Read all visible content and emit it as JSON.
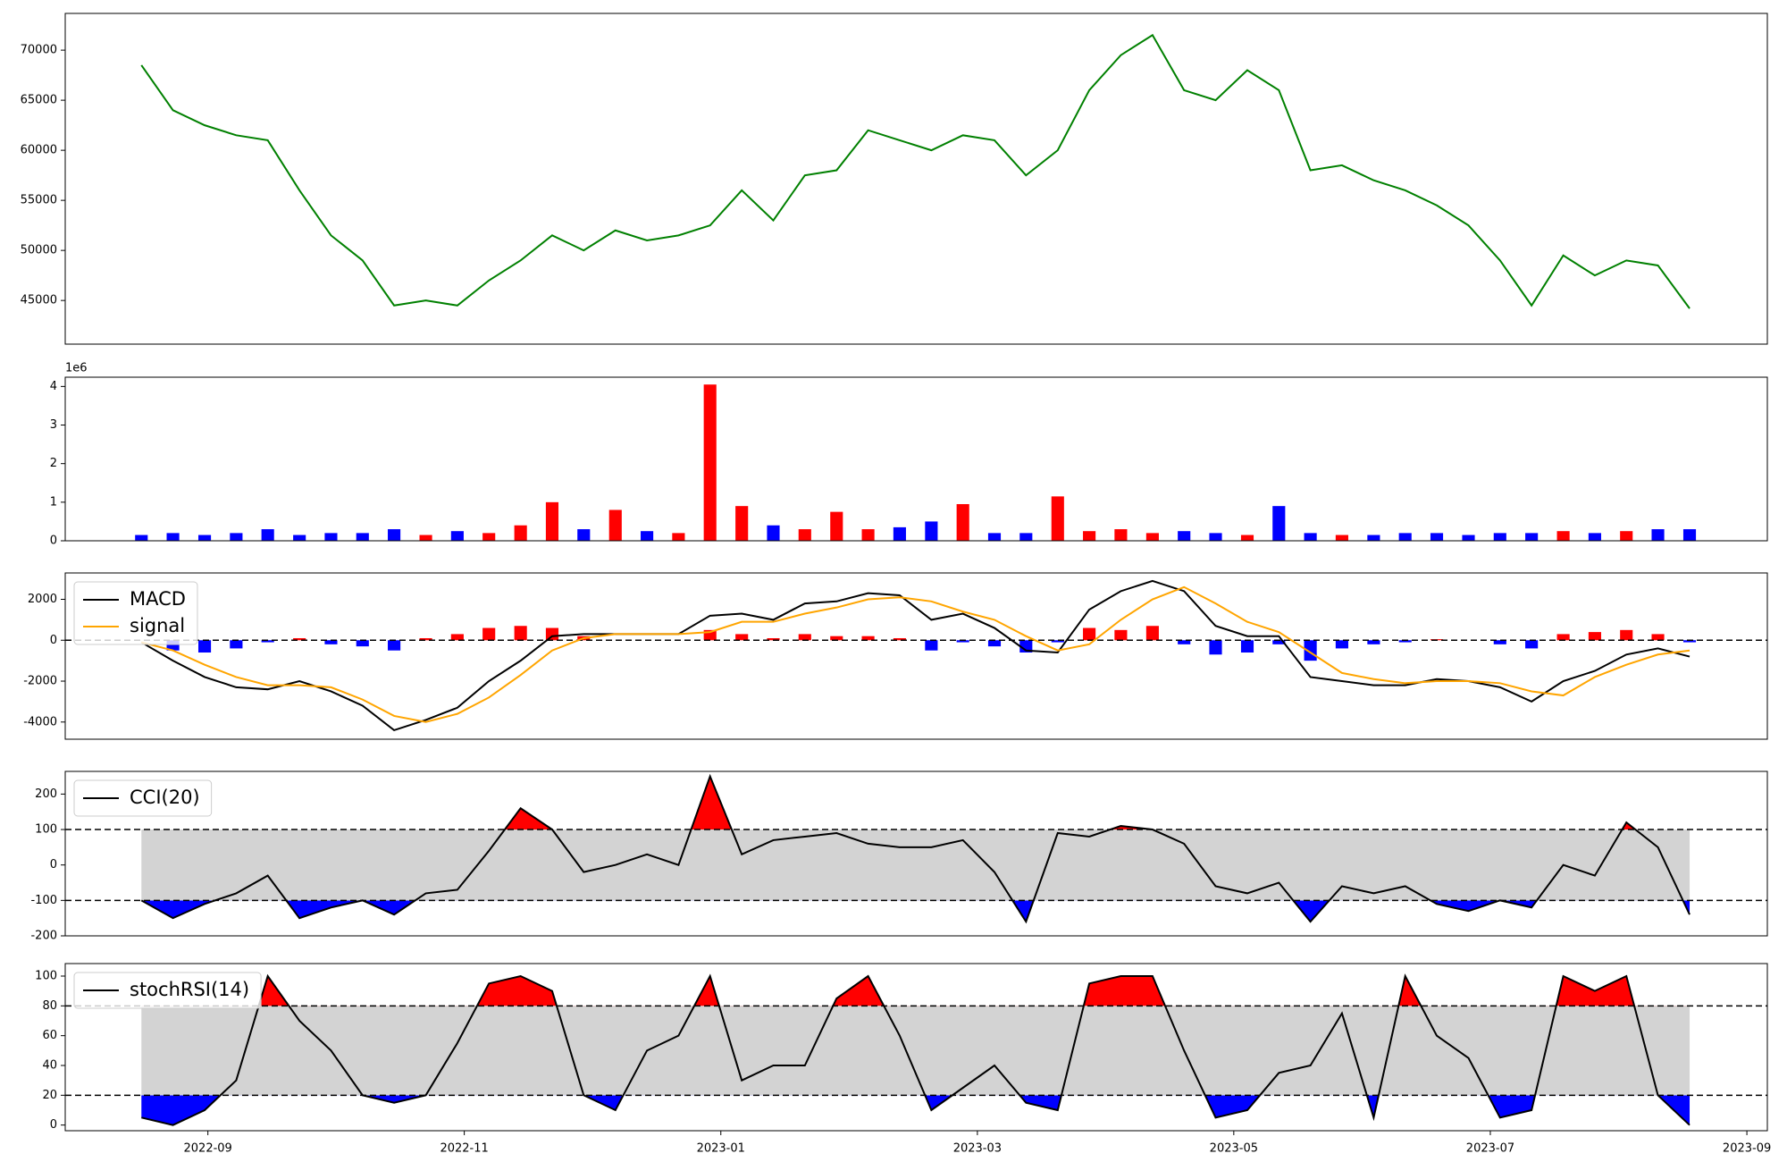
{
  "chart_data": [
    {
      "type": "line",
      "ylim": [
        40640,
        73670
      ],
      "yticks": [
        45000,
        50000,
        55000,
        60000,
        65000,
        70000
      ],
      "series": [
        {
          "color": "green",
          "values": [
            68500,
            64000,
            62500,
            61500,
            61000,
            56000,
            51500,
            49000,
            44500,
            45000,
            44500,
            47000,
            49000,
            51500,
            50000,
            52000,
            51000,
            51500,
            52500,
            56000,
            53000,
            57500,
            58000,
            62000,
            61000,
            60000,
            61500,
            61000,
            57500,
            60000,
            66000,
            69500,
            71500,
            66000,
            65000,
            68000,
            66000,
            58000,
            58500,
            57000,
            56000,
            54500,
            52500,
            49000,
            44500,
            49500,
            47500,
            49000,
            48500,
            44200
          ]
        }
      ]
    },
    {
      "type": "bar",
      "ylim": [
        0,
        4.24
      ],
      "yticks": [
        0,
        1,
        2,
        3,
        4
      ],
      "offset_label": "1e6",
      "up_color": "red",
      "down_color": "blue",
      "values": [
        0.15,
        0.2,
        0.15,
        0.2,
        0.3,
        0.15,
        0.2,
        0.2,
        0.3,
        0.15,
        0.25,
        0.2,
        0.4,
        1.0,
        0.3,
        0.8,
        0.25,
        0.2,
        4.05,
        0.9,
        0.4,
        0.3,
        0.75,
        0.3,
        0.35,
        0.5,
        0.95,
        0.2,
        0.2,
        1.15,
        0.25,
        0.3,
        0.2,
        0.25,
        0.2,
        0.15,
        0.9,
        0.2,
        0.15,
        0.15,
        0.2,
        0.2,
        0.15,
        0.2,
        0.2,
        0.25,
        0.2,
        0.25,
        0.3,
        0.3
      ]
    },
    {
      "type": "macd",
      "ylim": [
        -4840,
        3290
      ],
      "yticks": [
        -4000,
        -2000,
        0,
        2000
      ],
      "zero_line": 0,
      "legend": "upper left",
      "series": [
        {
          "name": "MACD",
          "color": "black",
          "values": [
            -100,
            -1000,
            -1800,
            -2300,
            -2400,
            -2000,
            -2500,
            -3200,
            -4400,
            -3900,
            -3300,
            -2000,
            -1000,
            200,
            300,
            300,
            300,
            300,
            1200,
            1300,
            1000,
            1800,
            1900,
            2300,
            2200,
            1000,
            1300,
            600,
            -500,
            -600,
            1500,
            2400,
            2900,
            2400,
            700,
            200,
            200,
            -1800,
            -2000,
            -2200,
            -2200,
            -1900,
            -2000,
            -2300,
            -3000,
            -2000,
            -1500,
            -700,
            -400,
            -800
          ]
        },
        {
          "name": "signal",
          "color": "orange",
          "values": [
            -100,
            -500,
            -1200,
            -1800,
            -2200,
            -2200,
            -2300,
            -2900,
            -3700,
            -4000,
            -3600,
            -2800,
            -1700,
            -500,
            100,
            300,
            300,
            300,
            400,
            900,
            900,
            1300,
            1600,
            2000,
            2100,
            1900,
            1400,
            1000,
            200,
            -500,
            -200,
            1000,
            2000,
            2600,
            1800,
            900,
            400,
            -600,
            -1600,
            -1900,
            -2100,
            -2000,
            -2000,
            -2100,
            -2500,
            -2700,
            -1800,
            -1200,
            -700,
            -500
          ]
        }
      ],
      "histogram": {
        "up_color": "red",
        "down_color": "blue",
        "values": [
          0,
          -500,
          -600,
          -400,
          -100,
          100,
          -200,
          -300,
          -500,
          100,
          300,
          600,
          700,
          600,
          200,
          0,
          0,
          0,
          500,
          300,
          100,
          300,
          200,
          200,
          100,
          -500,
          -100,
          -300,
          -600,
          -100,
          600,
          500,
          700,
          -200,
          -700,
          -600,
          -200,
          -1000,
          -400,
          -200,
          -100,
          50,
          0,
          -200,
          -400,
          300,
          400,
          500,
          300,
          -100
        ]
      }
    },
    {
      "type": "oscillator",
      "ylim": [
        -200,
        264
      ],
      "yticks": [
        -200,
        -100,
        0,
        100,
        200
      ],
      "bands": [
        -100,
        100
      ],
      "band_color": "lightgray",
      "high_color": "red",
      "low_color": "blue",
      "legend": "upper left",
      "series": [
        {
          "name": "CCI(20)",
          "color": "black",
          "values": [
            -100,
            -150,
            -110,
            -80,
            -30,
            -150,
            -120,
            -100,
            -140,
            -80,
            -70,
            40,
            160,
            100,
            -20,
            0,
            30,
            0,
            250,
            30,
            70,
            80,
            90,
            60,
            50,
            50,
            70,
            -20,
            -160,
            90,
            80,
            110,
            100,
            60,
            -60,
            -80,
            -50,
            -160,
            -60,
            -80,
            -60,
            -110,
            -130,
            -100,
            -120,
            0,
            -30,
            120,
            50,
            -140
          ]
        }
      ]
    },
    {
      "type": "oscillator",
      "ylim": [
        -3.8,
        108.4
      ],
      "yticks": [
        0,
        20,
        40,
        60,
        80,
        100
      ],
      "bands": [
        20,
        80
      ],
      "band_color": "lightgray",
      "high_color": "red",
      "low_color": "blue",
      "legend": "upper left",
      "xlim": [
        2022.574,
        2023.68
      ],
      "xticks": [
        {
          "value": 2022.6667,
          "label": "2022-09"
        },
        {
          "value": 2022.8333,
          "label": "2022-11"
        },
        {
          "value": 2023.0,
          "label": "2023-01"
        },
        {
          "value": 2023.1667,
          "label": "2023-03"
        },
        {
          "value": 2023.3333,
          "label": "2023-05"
        },
        {
          "value": 2023.5,
          "label": "2023-07"
        },
        {
          "value": 2023.6667,
          "label": "2023-09"
        }
      ],
      "x": [
        2022.6235,
        2022.644,
        2022.6646,
        2022.6851,
        2022.7056,
        2022.7262,
        2022.7467,
        2022.7672,
        2022.7877,
        2022.8083,
        2022.8288,
        2022.8493,
        2022.8699,
        2022.8904,
        2022.9109,
        2022.9315,
        2022.952,
        2022.9725,
        2022.993,
        2023.0136,
        2023.0341,
        2023.0546,
        2023.0752,
        2023.0957,
        2023.1162,
        2023.1368,
        2023.1573,
        2023.1778,
        2023.1983,
        2023.2189,
        2023.2394,
        2023.2599,
        2023.2805,
        2023.301,
        2023.3215,
        2023.3421,
        2023.3626,
        2023.3831,
        2023.4036,
        2023.4242,
        2023.4447,
        2023.4652,
        2023.4858,
        2023.5063,
        2023.5268,
        2023.5474,
        2023.5679,
        2023.5884,
        2023.6089,
        2023.6295
      ],
      "series": [
        {
          "name": "stochRSI(14)",
          "color": "black",
          "values": [
            5,
            0,
            10,
            30,
            100,
            70,
            50,
            20,
            15,
            20,
            55,
            95,
            100,
            90,
            20,
            10,
            50,
            60,
            100,
            30,
            40,
            40,
            85,
            100,
            60,
            10,
            25,
            40,
            15,
            10,
            95,
            100,
            100,
            50,
            5,
            10,
            35,
            40,
            75,
            5,
            100,
            60,
            45,
            5,
            10,
            100,
            90,
            100,
            20,
            0
          ]
        }
      ]
    }
  ]
}
